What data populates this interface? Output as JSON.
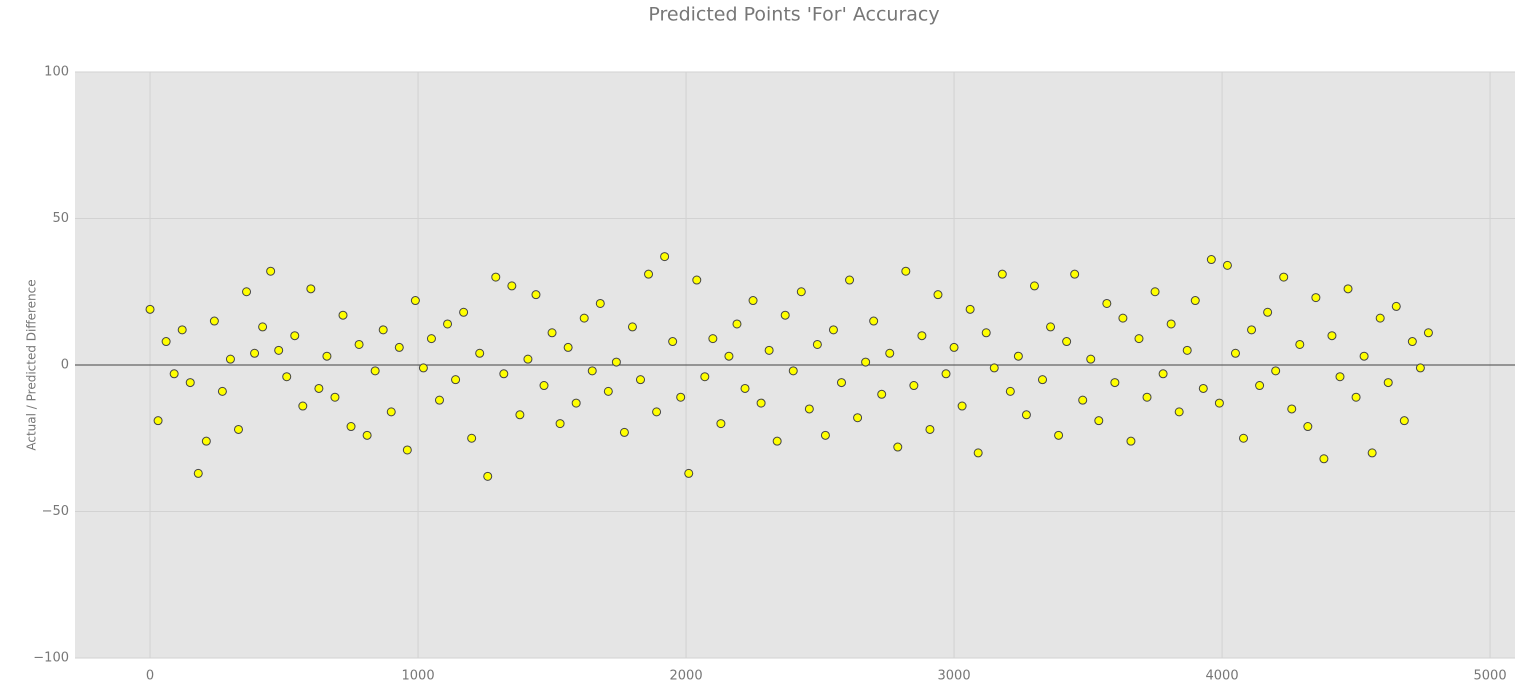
{
  "chart_data": {
    "type": "scatter",
    "title": "Predicted Points 'For' Accuracy",
    "y_label": "Actual / Predicted Difference",
    "xlim": [
      -280,
      5093
    ],
    "ylim": [
      -100,
      100
    ],
    "xticks": [
      0,
      1000,
      2000,
      3000,
      4000,
      5000
    ],
    "yticks": [
      {
        "value": -100,
        "label": "−100"
      },
      {
        "value": -50,
        "label": "−50"
      },
      0,
      50,
      100
    ],
    "grid": true,
    "zeroline": true,
    "color": "#ffff00",
    "edgecolor": "#444444",
    "x": [
      0,
      30,
      60,
      90,
      120,
      150,
      180,
      210,
      240,
      270,
      300,
      330,
      360,
      390,
      420,
      450,
      480,
      510,
      540,
      570,
      600,
      630,
      660,
      690,
      720,
      750,
      780,
      810,
      840,
      870,
      900,
      930,
      960,
      990,
      1020,
      1050,
      1080,
      1110,
      1140,
      1170,
      1200,
      1230,
      1260,
      1290,
      1320,
      1350,
      1380,
      1410,
      1440,
      1470,
      1500,
      1530,
      1560,
      1590,
      1620,
      1650,
      1680,
      1710,
      1740,
      1770,
      1800,
      1830,
      1860,
      1890,
      1920,
      1950,
      1980,
      2010,
      2040,
      2070,
      2100,
      2130,
      2160,
      2190,
      2220,
      2250,
      2280,
      2310,
      2340,
      2370,
      2400,
      2430,
      2460,
      2490,
      2520,
      2550,
      2580,
      2610,
      2640,
      2670,
      2700,
      2730,
      2760,
      2790,
      2820,
      2850,
      2880,
      2910,
      2940,
      2970,
      3000,
      3030,
      3060,
      3090,
      3120,
      3150,
      3180,
      3210,
      3240,
      3270,
      3300,
      3330,
      3360,
      3390,
      3420,
      3450,
      3480,
      3510,
      3540,
      3570,
      3600,
      3630,
      3660,
      3690,
      3720,
      3750,
      3780,
      3810,
      3840,
      3870,
      3900,
      3930,
      3960,
      3990,
      4020,
      4050,
      4080,
      4110,
      4140,
      4170,
      4200,
      4230,
      4260,
      4290,
      4320,
      4350,
      4380,
      4410,
      4440,
      4470,
      4500,
      4530,
      4560,
      4590,
      4620,
      4650,
      4680,
      4710,
      4740,
      4770
    ],
    "values": [
      19,
      -19,
      8,
      -3,
      12,
      -6,
      -37,
      -26,
      15,
      -9,
      2,
      -22,
      25,
      4,
      13,
      32,
      5,
      -4,
      10,
      -14,
      26,
      -8,
      3,
      -11,
      17,
      -21,
      7,
      -24,
      -2,
      12,
      -16,
      6,
      -29,
      22,
      -1,
      9,
      -12,
      14,
      -5,
      18,
      -25,
      4,
      -38,
      30,
      -3,
      27,
      -17,
      2,
      24,
      -7,
      11,
      -20,
      6,
      -13,
      16,
      -2,
      21,
      -9,
      1,
      -23,
      13,
      -5,
      31,
      -16,
      37,
      8,
      -11,
      -37,
      29,
      -4,
      9,
      -20,
      3,
      14,
      -8,
      22,
      -13,
      5,
      -26,
      17,
      -2,
      25,
      -15,
      7,
      -24,
      12,
      -6,
      29,
      -18,
      1,
      15,
      -10,
      4,
      -28,
      32,
      -7,
      10,
      -22,
      24,
      -3,
      6,
      -14,
      19,
      -30,
      11,
      -1,
      31,
      -9,
      3,
      -17,
      27,
      -5,
      13,
      -24,
      8,
      31,
      -12,
      2,
      -19,
      21,
      -6,
      16,
      -26,
      9,
      -11,
      25,
      -3,
      14,
      -16,
      5,
      22,
      -8,
      36,
      -13,
      34,
      4,
      -25,
      12,
      -7,
      18,
      -2,
      30,
      -15,
      7,
      -21,
      23,
      -32,
      10,
      -4,
      26,
      -11,
      3,
      -30,
      16,
      -6,
      20,
      -19,
      8,
      -1,
      11
    ]
  }
}
